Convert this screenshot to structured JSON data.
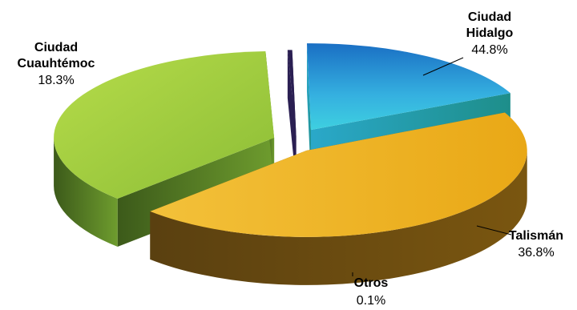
{
  "chart_data": {
    "type": "pie",
    "three_d": true,
    "exploded": true,
    "slices": [
      {
        "label": "Ciudad Hidalgo",
        "value": 44.8,
        "value_label": "44.8%",
        "color": "#f0b21e"
      },
      {
        "label": "Talismán",
        "value": 36.8,
        "value_label": "36.8%",
        "color": "#93c83c"
      },
      {
        "label": "Otros",
        "value": 0.1,
        "value_label": "0.1%",
        "color": "#2a1f52"
      },
      {
        "label": "Ciudad Cuauhtémoc",
        "value": 18.3,
        "value_label": "18.3%",
        "color": "#2fb4df"
      }
    ],
    "label_lines": {
      "ciudad_hidalgo": [
        "Ciudad",
        "Hidalgo"
      ],
      "talisman": [
        "Talismán"
      ],
      "otros": [
        "Otros"
      ],
      "ciudad_cuauhtemoc": [
        "Ciudad",
        "Cuauhtémoc"
      ]
    },
    "legend": "none",
    "grid": false
  }
}
